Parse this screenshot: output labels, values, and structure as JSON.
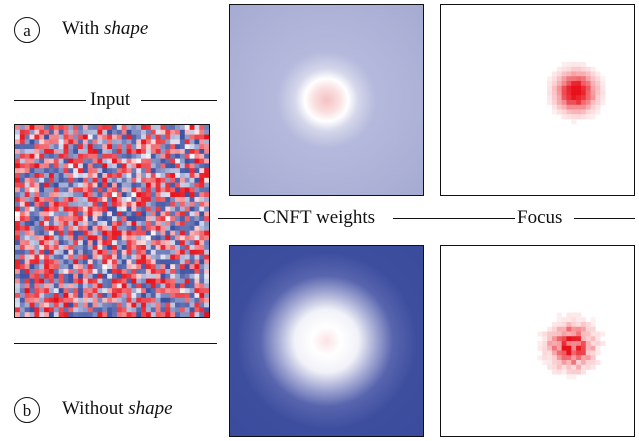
{
  "panel_a": {
    "marker": "a",
    "caption_prefix": "With ",
    "caption_emph": "shape"
  },
  "panel_b": {
    "marker": "b",
    "caption_prefix": "Without ",
    "caption_emph": "shape"
  },
  "labels": {
    "input": "Input",
    "cnft_weights": "CNFT weights",
    "focus": "Focus"
  },
  "colors": {
    "negative": "#3a4fa0",
    "neutral": "#ffffff",
    "positive": "#e8101a",
    "border": "#111111"
  }
}
